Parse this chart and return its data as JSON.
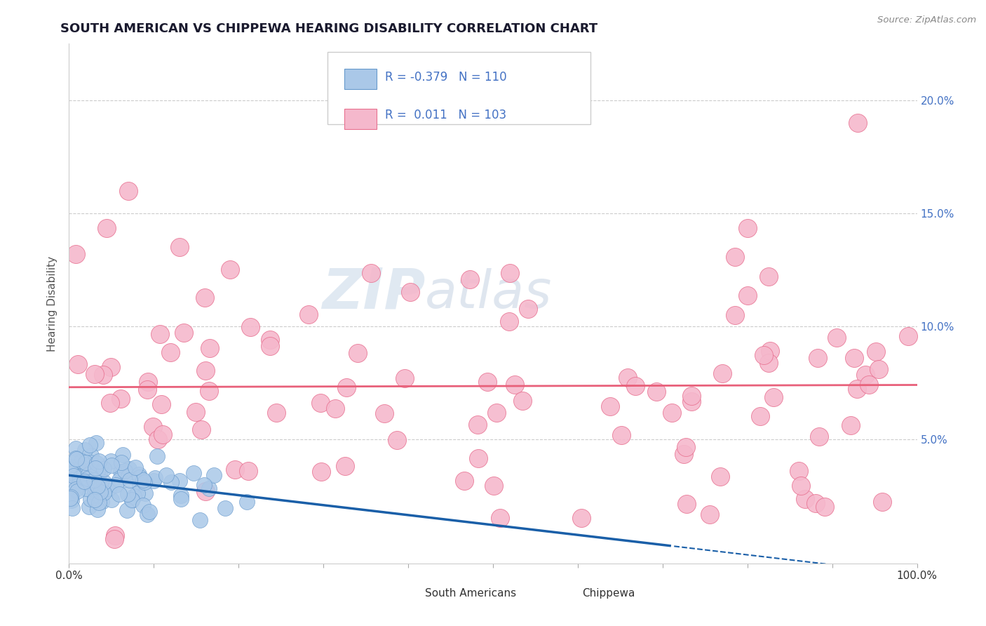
{
  "title": "SOUTH AMERICAN VS CHIPPEWA HEARING DISABILITY CORRELATION CHART",
  "source": "Source: ZipAtlas.com",
  "ylabel": "Hearing Disability",
  "xlim": [
    0,
    1.0
  ],
  "ylim": [
    -0.005,
    0.225
  ],
  "legend_r_blue": "-0.379",
  "legend_n_blue": "110",
  "legend_r_pink": "0.011",
  "legend_n_pink": "103",
  "blue_color": "#aac8e8",
  "blue_edge_color": "#6699cc",
  "pink_color": "#f5b8cc",
  "pink_edge_color": "#e87090",
  "blue_line_color": "#1a5fa8",
  "pink_line_color": "#e8607a",
  "watermark_zip": "ZIP",
  "watermark_atlas": "atlas",
  "background_color": "#ffffff",
  "grid_color": "#cccccc",
  "ytick_color": "#4472c4",
  "title_color": "#1a1a2e",
  "source_color": "#888888",
  "legend_text_color": "#4472c4",
  "legend_label_color": "#222222"
}
